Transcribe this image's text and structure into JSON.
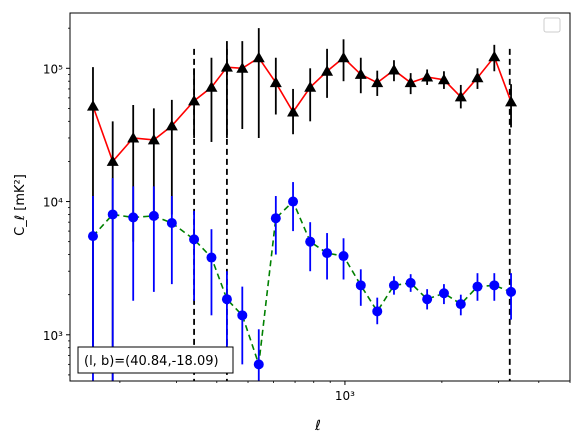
{
  "chart_data": {
    "type": "line",
    "xscale": "log",
    "yscale": "log",
    "xlim": [
      140,
      5000
    ],
    "ylim": [
      450,
      260000
    ],
    "xticks": [
      {
        "value": 1000,
        "label": "10³"
      }
    ],
    "yticks": [
      {
        "value": 1000,
        "label": "10³"
      },
      {
        "value": 10000,
        "label": "10⁴"
      },
      {
        "value": 100000,
        "label": "10⁵"
      }
    ],
    "xlabel": "ℓ",
    "ylabel": "C_ℓ  [mK²]",
    "annotation": "(l, b)=(40.84,-18.09)",
    "legend": {
      "placement": "top-right",
      "entries": []
    },
    "vlines": [
      340,
      430,
      3250
    ],
    "colors": {
      "series_1": "#ff0000",
      "series_1_marker": "#000000",
      "series_2": "#008000",
      "series_2_marker": "#0000ff"
    },
    "series": [
      {
        "color": "#ff0000",
        "marker_color": "#000000",
        "marker": "triangle",
        "linestyle": "solid",
        "errorbar_color": "#000000",
        "points": [
          {
            "x": 165,
            "y": 52000,
            "lo": 600,
            "hi": 102000
          },
          {
            "x": 190,
            "y": 20000,
            "lo": 450,
            "hi": 40000
          },
          {
            "x": 220,
            "y": 30000,
            "lo": 5000,
            "hi": 53000
          },
          {
            "x": 255,
            "y": 29000,
            "lo": 8000,
            "hi": 50000
          },
          {
            "x": 290,
            "y": 37000,
            "lo": 8000,
            "hi": 58000
          },
          {
            "x": 340,
            "y": 57000,
            "lo": 30000,
            "hi": 100000
          },
          {
            "x": 385,
            "y": 72000,
            "lo": 28000,
            "hi": 120000
          },
          {
            "x": 430,
            "y": 102000,
            "lo": 30000,
            "hi": 160000
          },
          {
            "x": 480,
            "y": 100000,
            "lo": 35000,
            "hi": 160000
          },
          {
            "x": 540,
            "y": 120000,
            "lo": 30000,
            "hi": 200000
          },
          {
            "x": 610,
            "y": 78000,
            "lo": 45000,
            "hi": 120000
          },
          {
            "x": 690,
            "y": 47000,
            "lo": 32000,
            "hi": 70000
          },
          {
            "x": 780,
            "y": 72000,
            "lo": 40000,
            "hi": 100000
          },
          {
            "x": 880,
            "y": 95000,
            "lo": 60000,
            "hi": 140000
          },
          {
            "x": 990,
            "y": 120000,
            "lo": 80000,
            "hi": 165000
          },
          {
            "x": 1120,
            "y": 90000,
            "lo": 65000,
            "hi": 120000
          },
          {
            "x": 1260,
            "y": 78000,
            "lo": 62000,
            "hi": 96000
          },
          {
            "x": 1420,
            "y": 97000,
            "lo": 80000,
            "hi": 115000
          },
          {
            "x": 1600,
            "y": 78000,
            "lo": 64000,
            "hi": 92000
          },
          {
            "x": 1800,
            "y": 86000,
            "lo": 75000,
            "hi": 98000
          },
          {
            "x": 2030,
            "y": 82000,
            "lo": 70000,
            "hi": 95000
          },
          {
            "x": 2290,
            "y": 61000,
            "lo": 50000,
            "hi": 75000
          },
          {
            "x": 2580,
            "y": 85000,
            "lo": 70000,
            "hi": 100000
          },
          {
            "x": 2910,
            "y": 122000,
            "lo": 95000,
            "hi": 150000
          },
          {
            "x": 3280,
            "y": 56000,
            "lo": 36000,
            "hi": 76000
          }
        ]
      },
      {
        "color": "#008000",
        "marker_color": "#0000ff",
        "marker": "circle",
        "linestyle": "dashed",
        "errorbar_color": "#0000ff",
        "points": [
          {
            "x": 165,
            "y": 5500,
            "lo": 450,
            "hi": 11000
          },
          {
            "x": 190,
            "y": 8000,
            "lo": 450,
            "hi": 15000
          },
          {
            "x": 220,
            "y": 7600,
            "lo": 1800,
            "hi": 13000
          },
          {
            "x": 255,
            "y": 7800,
            "lo": 2100,
            "hi": 13000
          },
          {
            "x": 290,
            "y": 6900,
            "lo": 2400,
            "hi": 11000
          },
          {
            "x": 340,
            "y": 5200,
            "lo": 1800,
            "hi": 8500
          },
          {
            "x": 385,
            "y": 3800,
            "lo": 1400,
            "hi": 6200
          },
          {
            "x": 430,
            "y": 1850,
            "lo": 700,
            "hi": 3000
          },
          {
            "x": 480,
            "y": 1400,
            "lo": 600,
            "hi": 2300
          },
          {
            "x": 540,
            "y": 600,
            "lo": 450,
            "hi": 1100
          },
          {
            "x": 610,
            "y": 7500,
            "lo": 4000,
            "hi": 11000
          },
          {
            "x": 690,
            "y": 10000,
            "lo": 6000,
            "hi": 14000
          },
          {
            "x": 780,
            "y": 5000,
            "lo": 3000,
            "hi": 7000
          },
          {
            "x": 880,
            "y": 4100,
            "lo": 2600,
            "hi": 5800
          },
          {
            "x": 990,
            "y": 3900,
            "lo": 2600,
            "hi": 5300
          },
          {
            "x": 1120,
            "y": 2350,
            "lo": 1650,
            "hi": 3100
          },
          {
            "x": 1260,
            "y": 1500,
            "lo": 1200,
            "hi": 1900
          },
          {
            "x": 1420,
            "y": 2350,
            "lo": 2000,
            "hi": 2750
          },
          {
            "x": 1600,
            "y": 2450,
            "lo": 2100,
            "hi": 2850
          },
          {
            "x": 1800,
            "y": 1850,
            "lo": 1550,
            "hi": 2200
          },
          {
            "x": 2030,
            "y": 2050,
            "lo": 1700,
            "hi": 2400
          },
          {
            "x": 2290,
            "y": 1700,
            "lo": 1400,
            "hi": 2000
          },
          {
            "x": 2580,
            "y": 2300,
            "lo": 1800,
            "hi": 2900
          },
          {
            "x": 2910,
            "y": 2350,
            "lo": 1800,
            "hi": 2900
          },
          {
            "x": 3280,
            "y": 2100,
            "lo": 1300,
            "hi": 2900
          }
        ]
      }
    ]
  }
}
